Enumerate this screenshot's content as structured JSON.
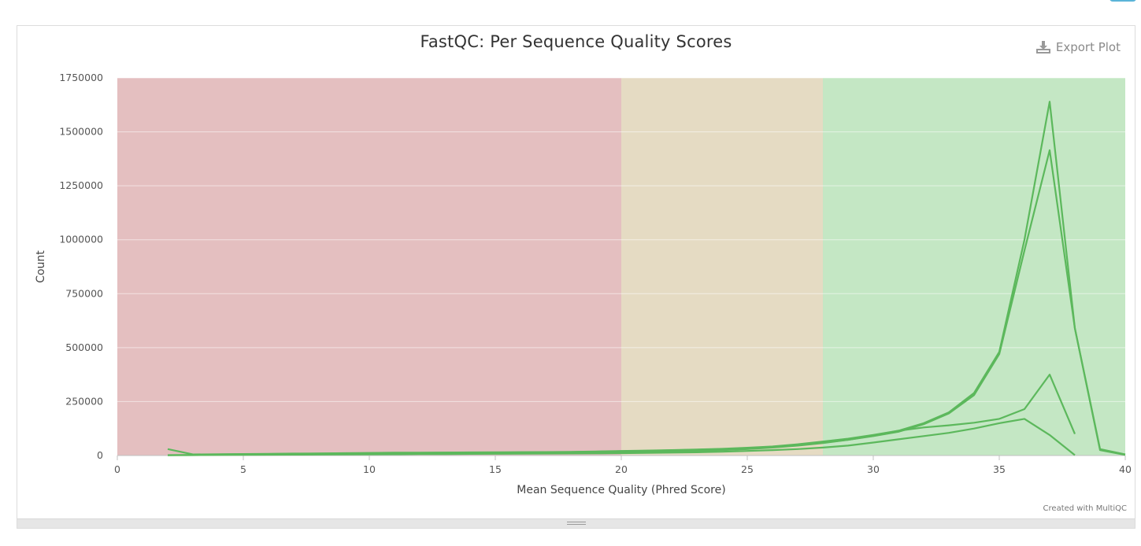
{
  "export_label": "Export Plot",
  "credit": "Created with MultiQC",
  "colors": {
    "band_fail": "#e4bfc0",
    "band_warn": "#e5dbc3",
    "band_pass": "#c4e7c4",
    "series": "#5cb85c",
    "grid": "#e9e9e9"
  },
  "chart_data": {
    "type": "line",
    "title": "FastQC: Per Sequence Quality Scores",
    "xlabel": "Mean Sequence Quality (Phred Score)",
    "ylabel": "Count",
    "xlim": [
      0,
      40
    ],
    "ylim": [
      0,
      1750000
    ],
    "x_ticks": [
      0,
      5,
      10,
      15,
      20,
      25,
      30,
      35,
      40
    ],
    "y_ticks": [
      0,
      250000,
      500000,
      750000,
      1000000,
      1250000,
      1500000,
      1750000
    ],
    "y_tick_labels": [
      "0",
      "250000",
      "500000",
      "750000",
      "1000000",
      "1250000",
      "1500000",
      "1750000"
    ],
    "x_tick_labels": [
      "0",
      "5",
      "10",
      "15",
      "20",
      "25",
      "30",
      "35",
      "40"
    ],
    "bands": [
      {
        "from": 0,
        "to": 20,
        "status": "fail"
      },
      {
        "from": 20,
        "to": 28,
        "status": "warn"
      },
      {
        "from": 28,
        "to": 40,
        "status": "pass"
      }
    ],
    "series": [
      {
        "x": [
          2,
          3,
          4,
          5,
          6,
          7,
          8,
          9,
          10,
          11,
          12,
          13,
          14,
          15,
          16,
          17,
          18,
          19,
          20,
          21,
          22,
          23,
          24,
          25,
          26,
          27,
          28,
          29,
          30,
          31,
          32,
          33,
          34,
          35,
          36,
          37,
          38,
          39,
          40
        ],
        "y": [
          30000,
          5000,
          6000,
          7000,
          8000,
          9000,
          10000,
          11000,
          12000,
          13000,
          13500,
          14000,
          14500,
          15000,
          15500,
          16000,
          17000,
          19000,
          21000,
          23000,
          25000,
          28000,
          31000,
          36000,
          42000,
          52000,
          65000,
          78000,
          95000,
          115000,
          150000,
          200000,
          290000,
          480000,
          1000000,
          1640000,
          590000,
          30000,
          5000
        ]
      },
      {
        "x": [
          3,
          4,
          5,
          6,
          7,
          8,
          9,
          10,
          11,
          12,
          13,
          14,
          15,
          16,
          17,
          18,
          19,
          20,
          21,
          22,
          23,
          24,
          25,
          26,
          27,
          28,
          29,
          30,
          31,
          32,
          33,
          34,
          35,
          36,
          37,
          38,
          39,
          40
        ],
        "y": [
          4000,
          5000,
          6000,
          7000,
          8000,
          9000,
          10000,
          11000,
          12000,
          12500,
          13000,
          13500,
          14000,
          14500,
          15000,
          16000,
          18000,
          20000,
          22000,
          24000,
          27000,
          30000,
          34000,
          40000,
          48000,
          60000,
          73000,
          90000,
          110000,
          145000,
          195000,
          280000,
          470000,
          950000,
          1415000,
          590000,
          25000,
          3000
        ]
      },
      {
        "x": [
          2,
          3,
          4,
          5,
          6,
          7,
          8,
          9,
          10,
          11,
          12,
          13,
          14,
          15,
          16,
          17,
          18,
          19,
          20,
          21,
          22,
          23,
          24,
          25,
          26,
          27,
          28,
          29,
          30,
          31,
          32,
          33,
          34,
          35,
          36,
          37,
          38
        ],
        "y": [
          2000,
          3000,
          4000,
          5000,
          5500,
          6000,
          6500,
          7000,
          7500,
          8000,
          8500,
          9000,
          9500,
          10000,
          10500,
          11000,
          12000,
          13000,
          14000,
          16000,
          18000,
          21000,
          25000,
          30000,
          37000,
          46000,
          58000,
          73000,
          92000,
          115000,
          130000,
          140000,
          152000,
          170000,
          215000,
          375000,
          100000
        ]
      },
      {
        "x": [
          2,
          3,
          4,
          5,
          6,
          7,
          8,
          9,
          10,
          11,
          12,
          13,
          14,
          15,
          16,
          17,
          18,
          19,
          20,
          21,
          22,
          23,
          24,
          25,
          26,
          27,
          28,
          29,
          30,
          31,
          32,
          33,
          34,
          35,
          36,
          37,
          38
        ],
        "y": [
          1000,
          2000,
          2500,
          3000,
          3500,
          4000,
          4500,
          5000,
          5500,
          6000,
          6500,
          7000,
          7500,
          8000,
          8500,
          9000,
          9500,
          10000,
          11000,
          12000,
          13500,
          15000,
          17500,
          21000,
          25000,
          30000,
          37000,
          46000,
          60000,
          75000,
          90000,
          105000,
          125000,
          150000,
          170000,
          95000,
          2000
        ]
      }
    ],
    "grid": true,
    "legend": "none"
  }
}
